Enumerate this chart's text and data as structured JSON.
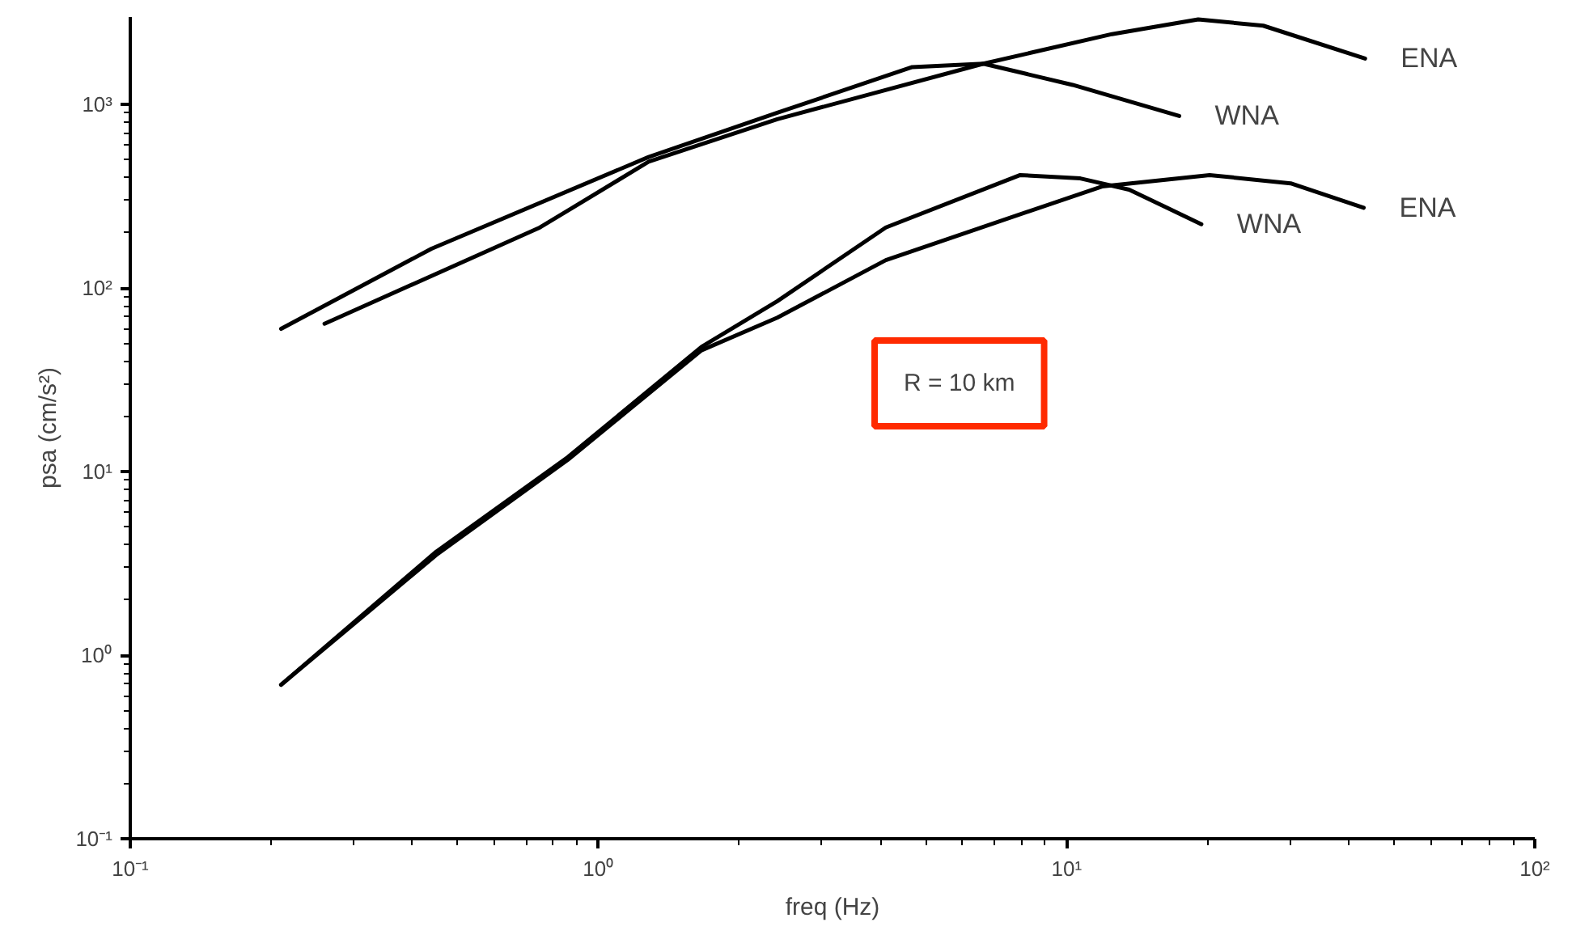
{
  "chart_data": {
    "type": "line",
    "xlabel": "freq (Hz)",
    "ylabel": "psa (cm/s²)",
    "log": "xy",
    "grid": false,
    "legend": false,
    "marker": "none",
    "line_style": "solid",
    "xlim": [
      0.1,
      100
    ],
    "ylim": [
      0.1,
      3000
    ],
    "xticks": [
      {
        "value": 0.1,
        "label": "10⁻¹"
      },
      {
        "value": 1,
        "label": "10⁰"
      },
      {
        "value": 10,
        "label": "10¹"
      },
      {
        "value": 100,
        "label": "10²"
      }
    ],
    "yticks": [
      {
        "value": 0.1,
        "label": "10⁻¹"
      },
      {
        "value": 1,
        "label": "10⁰"
      },
      {
        "value": 10,
        "label": "10¹"
      },
      {
        "value": 100,
        "label": "10²"
      },
      {
        "value": 1000,
        "label": "10³"
      }
    ],
    "series": [
      {
        "name": "WNA",
        "color": "#000000",
        "x": [
          0.21,
          0.44,
          1.28,
          2.41,
          4.68,
          6.64,
          10.3,
          17.4
        ],
        "values": [
          60,
          164,
          518,
          902,
          1600,
          1670,
          1280,
          867
        ]
      },
      {
        "name": "ENA",
        "color": "#000000",
        "x": [
          0.26,
          0.75,
          1.28,
          2.41,
          6.64,
          12.5,
          19.1,
          26.3,
          43.4
        ],
        "values": [
          64,
          214,
          488,
          832,
          1670,
          2420,
          2910,
          2690,
          1780
        ]
      },
      {
        "name": "WNA",
        "color": "#000000",
        "x": [
          0.21,
          0.45,
          0.86,
          1.66,
          2.41,
          4.11,
          7.96,
          10.7,
          13.6,
          19.4
        ],
        "values": [
          0.69,
          3.66,
          12.0,
          47.8,
          84.9,
          214,
          413,
          396,
          344,
          223
        ]
      },
      {
        "name": "ENA",
        "color": "#000000",
        "x": [
          0.21,
          0.45,
          0.86,
          1.66,
          2.41,
          4.11,
          11.9,
          20.2,
          30.1,
          43.1
        ],
        "values": [
          0.69,
          3.51,
          11.6,
          45.8,
          69,
          142,
          358,
          413,
          372,
          274
        ]
      }
    ],
    "annotations": [
      "R = 10 km"
    ]
  }
}
